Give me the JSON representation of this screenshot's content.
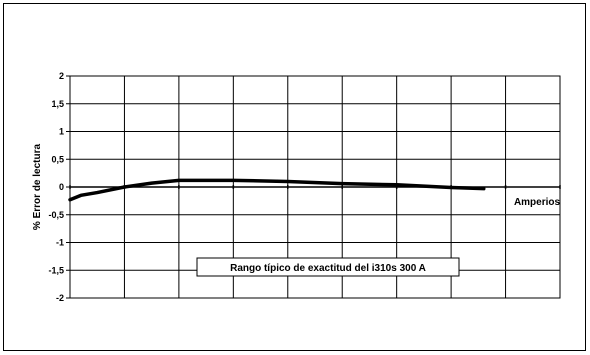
{
  "chart_data": {
    "type": "line",
    "ylabel": "% Error de lectura",
    "xlabel": "Amperios",
    "ylim": [
      -2,
      2
    ],
    "yticks": [
      "2",
      "1,5",
      "1",
      "0,5",
      "0",
      "-0,5",
      "-1",
      "-1,5",
      "-2"
    ],
    "ytick_values": [
      2,
      1.5,
      1,
      0.5,
      0,
      -0.5,
      -1,
      -1.5,
      -2
    ],
    "xlim": [
      0,
      9
    ],
    "grid": true,
    "annotation": "Rango típico de exactitud del i310s 300 A",
    "series": [
      {
        "x": [
          0,
          0.2,
          0.5,
          1,
          1.5,
          2,
          2.5,
          3,
          4,
          5,
          6,
          7,
          7.6
        ],
        "y": [
          -0.23,
          -0.15,
          -0.1,
          0,
          0.07,
          0.12,
          0.12,
          0.12,
          0.1,
          0.06,
          0.04,
          -0.01,
          -0.03
        ],
        "color": "#000000"
      }
    ]
  }
}
